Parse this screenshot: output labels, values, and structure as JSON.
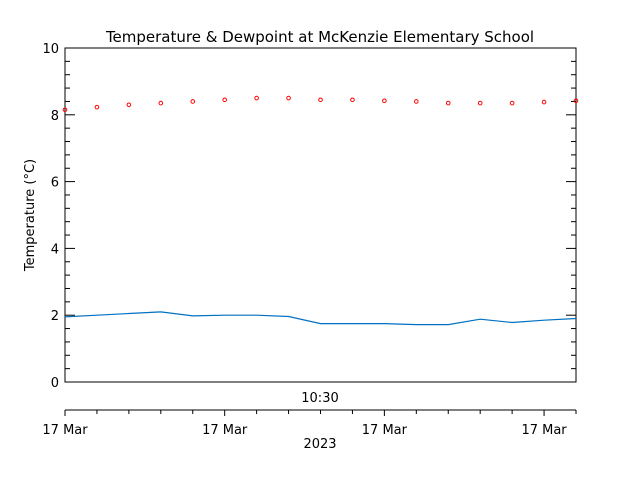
{
  "chart_data": {
    "type": "line",
    "title": "Temperature & Dewpoint at McKenzie Elementary School",
    "ylabel": "Temperature (°C)",
    "xlabel": "2023",
    "x_center_label": "10:30",
    "ylim": [
      0,
      10
    ],
    "y_ticks": [
      0,
      2,
      4,
      6,
      8,
      10
    ],
    "xlim": [
      "10:00",
      "10:48"
    ],
    "x_ticks": [
      {
        "x": "10:00",
        "label": "17 Mar"
      },
      {
        "x": "10:15",
        "label": "17 Mar"
      },
      {
        "x": "10:30",
        "label": "17 Mar"
      },
      {
        "x": "10:45",
        "label": "17 Mar"
      }
    ],
    "grid": false,
    "series": [
      {
        "style": "points",
        "color": "#ff0000",
        "x": [
          "10:00",
          "10:03",
          "10:06",
          "10:09",
          "10:12",
          "10:15",
          "10:18",
          "10:21",
          "10:24",
          "10:27",
          "10:30",
          "10:33",
          "10:36",
          "10:39",
          "10:42",
          "10:45",
          "10:48"
        ],
        "values": [
          8.15,
          8.23,
          8.3,
          8.35,
          8.4,
          8.45,
          8.5,
          8.5,
          8.45,
          8.45,
          8.42,
          8.4,
          8.35,
          8.35,
          8.35,
          8.38,
          8.42
        ]
      },
      {
        "style": "line",
        "color": "#0070c0",
        "x": [
          "10:00",
          "10:03",
          "10:06",
          "10:09",
          "10:12",
          "10:15",
          "10:18",
          "10:21",
          "10:24",
          "10:27",
          "10:30",
          "10:33",
          "10:36",
          "10:39",
          "10:42",
          "10:45",
          "10:48"
        ],
        "values": [
          1.95,
          2.0,
          2.05,
          2.1,
          1.98,
          2.0,
          2.0,
          1.96,
          1.75,
          1.75,
          1.75,
          1.72,
          1.72,
          1.88,
          1.78,
          1.85,
          1.9
        ]
      }
    ]
  }
}
